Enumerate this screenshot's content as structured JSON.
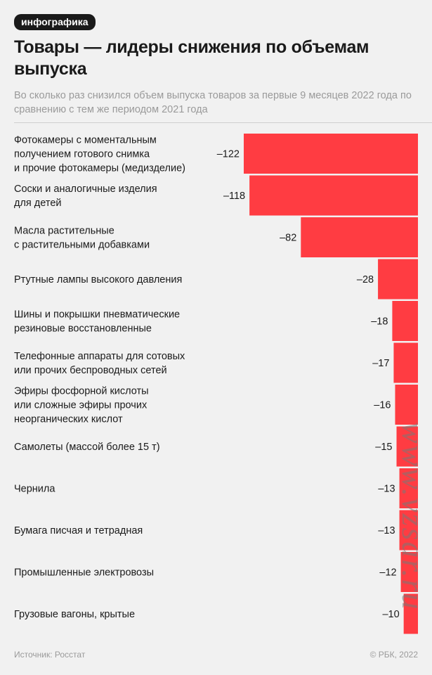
{
  "header": {
    "badge": "инфографика",
    "title": "Товары — лидеры снижения по объемам выпуска",
    "subtitle": "Во сколько раз снизился объем выпуска товаров за первые 9 месяцев 2022 года по сравнению с тем же периодом 2021 года"
  },
  "colors": {
    "bar": "#ff3c42",
    "background": "#f1f1f1",
    "text": "#1a1a1a",
    "muted": "#9a9a9a"
  },
  "chart_data": {
    "type": "bar",
    "orientation": "horizontal",
    "categories": [
      [
        "Фотокамеры с моментальным",
        "получением готового снимка",
        "и прочие фотокамеры (медизделие)"
      ],
      [
        "Соски и аналогичные изделия",
        "для детей"
      ],
      [
        "Масла растительные",
        "с растительными добавками"
      ],
      [
        "Ртутные лампы высокого давления"
      ],
      [
        "Шины и покрышки пневматические",
        "резиновые восстановленные"
      ],
      [
        "Телефонные аппараты для сотовых",
        "или прочих беспроводных сетей"
      ],
      [
        "Эфиры фосфорной кислоты",
        "или сложные эфиры прочих",
        "неорганических кислот"
      ],
      [
        "Самолеты (массой более 15 т)"
      ],
      [
        "Чернила"
      ],
      [
        "Бумага писчая и тетрадная"
      ],
      [
        "Промышленные электровозы"
      ],
      [
        "Грузовые вагоны, крытые"
      ]
    ],
    "values": [
      -122,
      -118,
      -82,
      -28,
      -18,
      -17,
      -16,
      -15,
      -13,
      -13,
      -12,
      -10
    ],
    "value_labels": [
      "–122",
      "–118",
      "–82",
      "–28",
      "–18",
      "–17",
      "–16",
      "–15",
      "–13",
      "–13",
      "–12",
      "–10"
    ],
    "bar_anchor": "right"
  },
  "footer": {
    "source": "Источник: Росстат",
    "copyright": "© РБК, 2022"
  },
  "watermark": "www.vzsar.ru"
}
